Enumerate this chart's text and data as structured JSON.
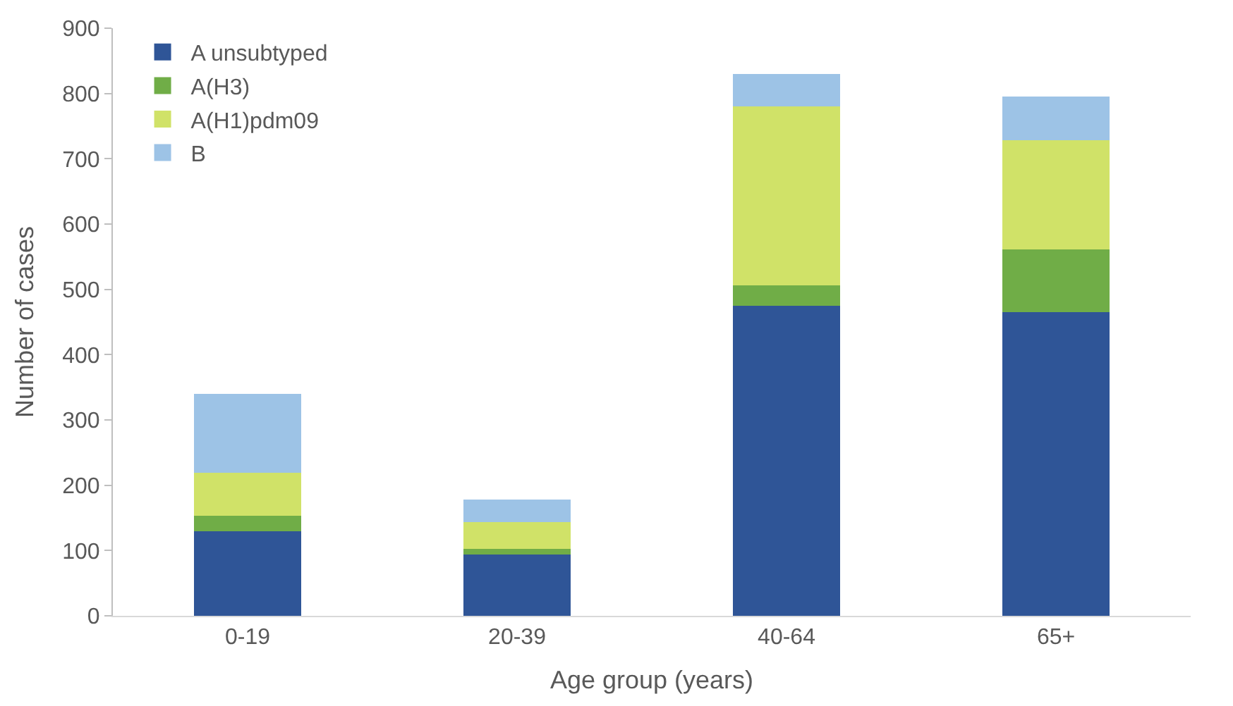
{
  "chart_data": {
    "type": "bar",
    "stacked": true,
    "xlabel": "Age group (years)",
    "ylabel": "Number of cases",
    "categories": [
      "0-19",
      "20-39",
      "40-64",
      "65+"
    ],
    "series": [
      {
        "name": "A unsubtyped",
        "color": "#2f5597",
        "values": [
          130,
          94,
          475,
          465
        ]
      },
      {
        "name": "A(H3)",
        "color": "#70ad47",
        "values": [
          23,
          8,
          31,
          96
        ]
      },
      {
        "name": "A(H1)pdm09",
        "color": "#d0e268",
        "values": [
          66,
          41,
          274,
          167
        ]
      },
      {
        "name": "B",
        "color": "#9dc3e6",
        "values": [
          121,
          35,
          50,
          67
        ]
      }
    ],
    "ylim": [
      0,
      900
    ],
    "yticks": [
      0,
      100,
      200,
      300,
      400,
      500,
      600,
      700,
      800,
      900
    ],
    "grid": false,
    "legend": "top left"
  }
}
